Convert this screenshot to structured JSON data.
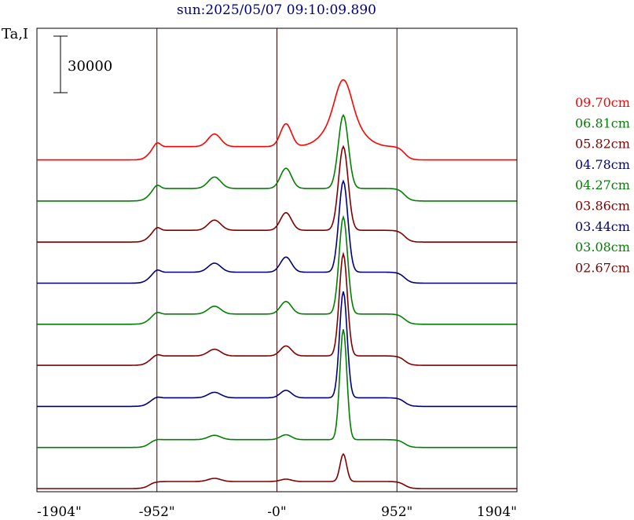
{
  "chart_data": {
    "type": "line",
    "title": "sun:2025/05/07 09:10:09.890",
    "ylabel": "Ta,I",
    "scale_bar_label": "30000",
    "scale_bar_value": 30000,
    "x_ticks": [
      "-1904\"",
      "-952\"",
      "-0\"",
      "952\"",
      "1904\""
    ],
    "x_tick_values": [
      -1904,
      -952,
      0,
      952,
      1904
    ],
    "xlim": [
      -1904,
      1904
    ],
    "vertical_grid_at": [
      -952,
      0,
      952
    ],
    "legend_position": "right",
    "series": [
      {
        "name": "09.70cm",
        "color": "#ff0000",
        "offset": 8
      },
      {
        "name": "06.81cm",
        "color": "#008000",
        "offset": 7
      },
      {
        "name": "05.82cm",
        "color": "#800000",
        "offset": 6
      },
      {
        "name": "04.78cm",
        "color": "#000080",
        "offset": 5
      },
      {
        "name": "04.27cm",
        "color": "#008000",
        "offset": 4
      },
      {
        "name": "03.86cm",
        "color": "#800000",
        "offset": 3
      },
      {
        "name": "03.44cm",
        "color": "#000080",
        "offset": 2
      },
      {
        "name": "03.08cm",
        "color": "#008000",
        "offset": 1
      },
      {
        "name": "02.67cm",
        "color": "#800000",
        "offset": 0
      }
    ]
  }
}
